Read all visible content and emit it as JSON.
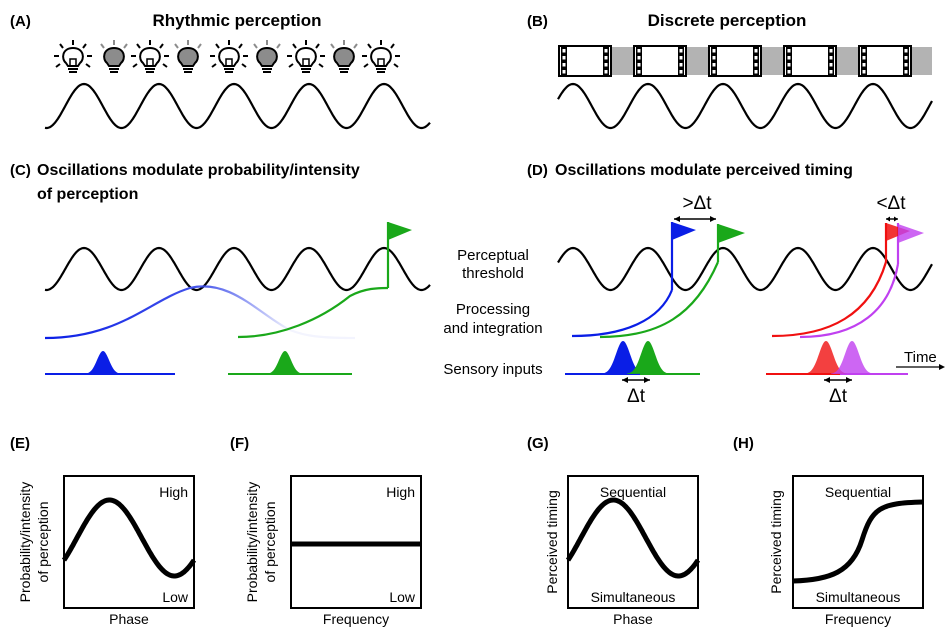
{
  "panels": {
    "A": {
      "letter": "(A)",
      "title": "Rhythmic perception"
    },
    "B": {
      "letter": "(B)",
      "title": "Discrete perception"
    },
    "C": {
      "letter": "(C)",
      "title_line1": "Oscillations modulate probability/intensity",
      "title_line2": "of perception"
    },
    "D": {
      "letter": "(D)",
      "title": "Oscillations modulate perceived timing"
    },
    "E": {
      "letter": "(E)",
      "ylabel_line1": "Probability/intensity",
      "ylabel_line2": "of perception",
      "xlabel": "Phase",
      "high": "High",
      "low": "Low"
    },
    "F": {
      "letter": "(F)",
      "ylabel_line1": "Probability/intensity",
      "ylabel_line2": "of perception",
      "xlabel": "Frequency",
      "high": "High",
      "low": "Low"
    },
    "G": {
      "letter": "(G)",
      "ylabel": "Perceived timing",
      "xlabel": "Phase",
      "high": "Sequential",
      "low": "Simultaneous"
    },
    "H": {
      "letter": "(H)",
      "ylabel": "Perceived timing",
      "xlabel": "Frequency",
      "high": "Sequential",
      "low": "Simultaneous"
    }
  },
  "middle_labels": {
    "threshold_line1": "Perceptual",
    "threshold_line2": "threshold",
    "processing_line1": "Processing",
    "processing_line2": "and integration",
    "sensory": "Sensory inputs"
  },
  "timing": {
    "greater": ">Δt",
    "less": "<Δt",
    "delta": "Δt",
    "time": "Time"
  },
  "colors": {
    "blue": "#0a1ee6",
    "green": "#1aa81a",
    "red": "#f01010",
    "magenta": "#c040f0",
    "frame_gray": "#b3b3b3",
    "bulb_gray": "#8c8c8c"
  },
  "icons": {
    "bulb_on": "lightbulb-on-icon",
    "bulb_off": "lightbulb-off-icon",
    "frame": "film-frame-icon",
    "flag": "flag-icon"
  }
}
